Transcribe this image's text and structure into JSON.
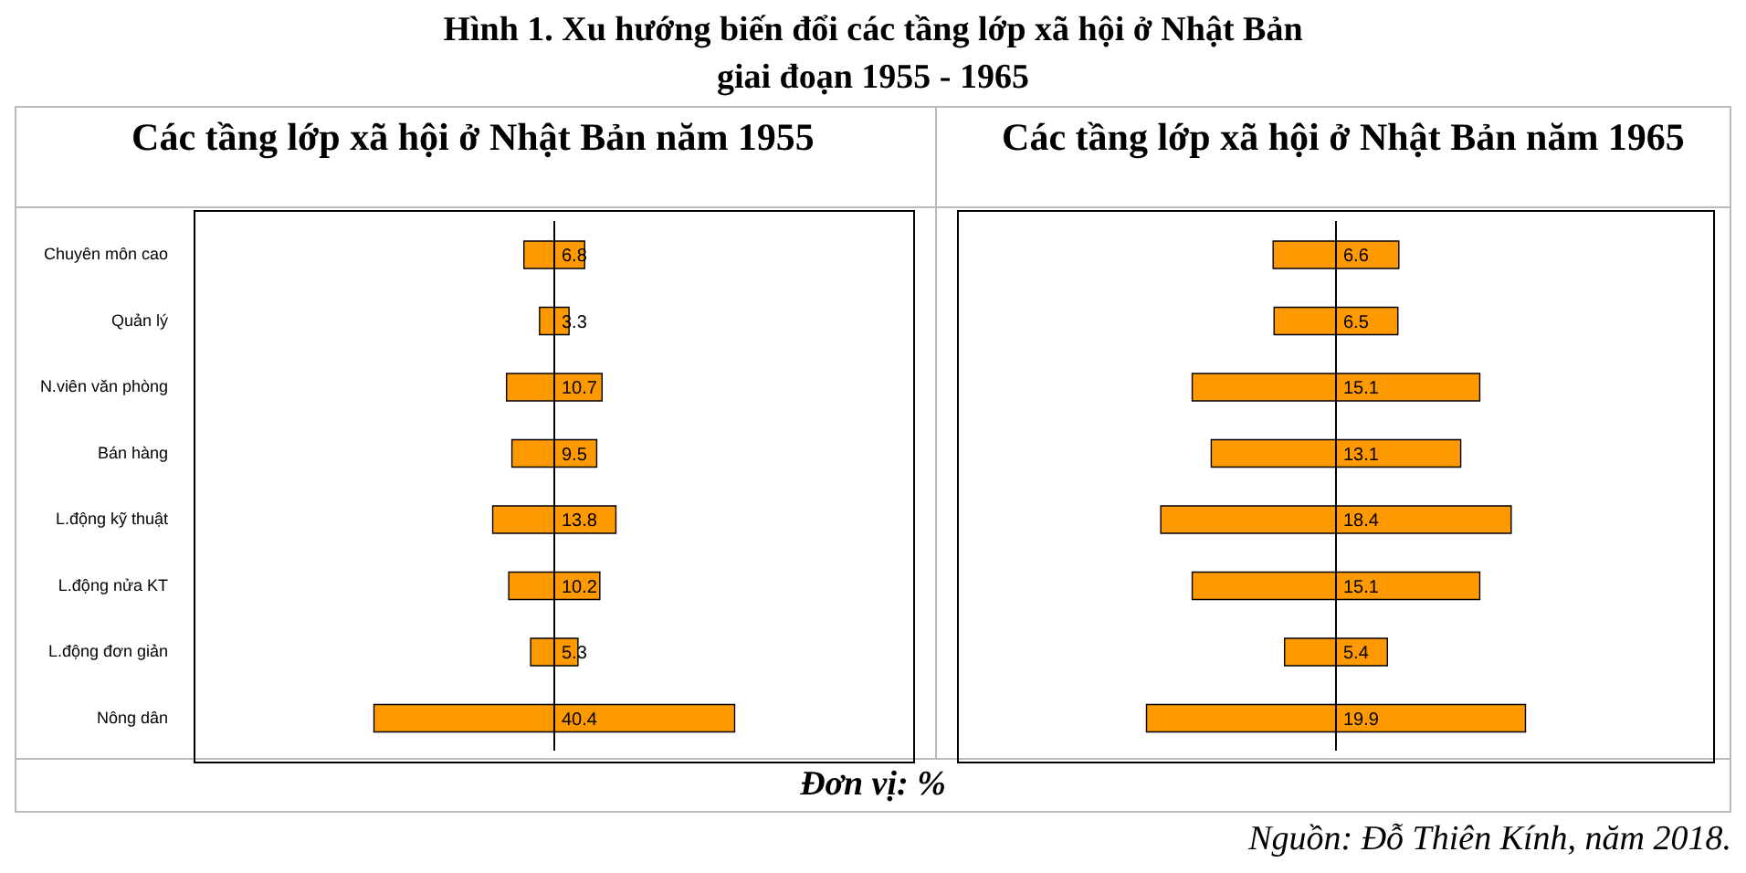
{
  "chart_data": [
    {
      "type": "other",
      "title": "Hình 1. Xu hướng biến đổi các tầng lớp xã hội ở Nhật Bản\ngiai đoạn 1955 - 1965",
      "subtitle": "Các tầng lớp xã hội ở Nhật Bản năm 1955",
      "categories": [
        "Chuyên môn cao",
        "Quản lý",
        "N.viên văn phòng",
        "Bán hàng",
        "L.động kỹ thuật",
        "L.động nửa KT",
        "L.động đơn giản",
        "Nông dân"
      ],
      "values": [
        6.8,
        3.3,
        10.7,
        9.5,
        13.8,
        10.2,
        5.3,
        40.4
      ],
      "color": "#ff9900",
      "data_labels": true,
      "annotations": [
        "Đơn vị: %",
        "Nguồn: Đỗ Thiên Kính, năm 2018."
      ]
    },
    {
      "type": "other",
      "subtitle": "Các tầng lớp xã hội ở Nhật Bản năm 1965",
      "categories": [
        null,
        null,
        null,
        null,
        null,
        null,
        null,
        null
      ],
      "values": [
        6.6,
        6.5,
        15.1,
        13.1,
        18.4,
        15.1,
        5.4,
        19.9
      ],
      "color": "#ff9900",
      "data_labels": true
    }
  ]
}
